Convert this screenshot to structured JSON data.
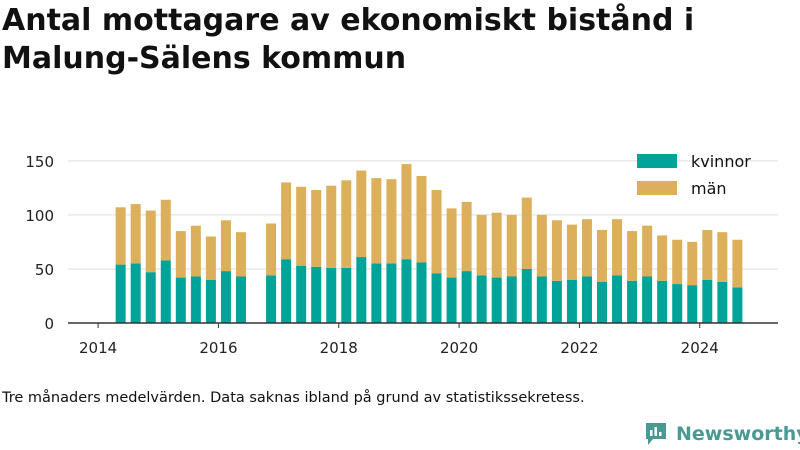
{
  "header": {
    "title": "Antal mottagare av ekonomiskt bistånd i Malung-Sälens kommun"
  },
  "footer": {
    "note": "Tre månaders medelvärden. Data saknas ibland på grund av statistikssekretess.",
    "brand": "Newsworthy"
  },
  "colors": {
    "kvinnor": "#00a398",
    "man": "#dcaf5a",
    "grid": "#dddddd",
    "axis": "#333333",
    "brand": "#4a9a94"
  },
  "chart_data": {
    "type": "bar",
    "stacked": true,
    "x_ticks": [
      "2014",
      "2016",
      "2018",
      "2020",
      "2022",
      "2024"
    ],
    "y_ticks": [
      "0",
      "50",
      "100",
      "150"
    ],
    "ylim": [
      0,
      160
    ],
    "grid": true,
    "legend_position": "top-right",
    "x": [
      "2014-Q2",
      "2014-Q3",
      "2014-Q4",
      "2015-Q1",
      "2015-Q2",
      "2015-Q3",
      "2015-Q4",
      "2016-Q1",
      "2016-Q2",
      "2016-Q4",
      "2017-Q1",
      "2017-Q2",
      "2017-Q3",
      "2017-Q4",
      "2018-Q1",
      "2018-Q2",
      "2018-Q3",
      "2018-Q4",
      "2019-Q1",
      "2019-Q2",
      "2019-Q3",
      "2019-Q4",
      "2020-Q1",
      "2020-Q2",
      "2020-Q3",
      "2020-Q4",
      "2021-Q1",
      "2021-Q2",
      "2021-Q3",
      "2021-Q4",
      "2022-Q1",
      "2022-Q2",
      "2022-Q3",
      "2022-Q4",
      "2023-Q1",
      "2023-Q2",
      "2023-Q3",
      "2023-Q4",
      "2024-Q1",
      "2024-Q2",
      "2024-Q3"
    ],
    "series": [
      {
        "name": "kvinnor",
        "values": [
          54,
          55,
          47,
          58,
          42,
          43,
          40,
          48,
          43,
          44,
          59,
          53,
          52,
          51,
          51,
          61,
          55,
          55,
          59,
          56,
          46,
          42,
          48,
          44,
          42,
          43,
          50,
          43,
          39,
          40,
          43,
          38,
          44,
          39,
          43,
          39,
          36,
          35,
          40,
          38,
          33
        ]
      },
      {
        "name": "män",
        "values": [
          53,
          55,
          57,
          56,
          43,
          47,
          40,
          47,
          41,
          48,
          71,
          73,
          71,
          76,
          81,
          80,
          79,
          78,
          88,
          80,
          77,
          64,
          64,
          56,
          60,
          57,
          66,
          57,
          56,
          51,
          53,
          48,
          52,
          46,
          47,
          42,
          41,
          40,
          46,
          46,
          44
        ]
      }
    ]
  }
}
